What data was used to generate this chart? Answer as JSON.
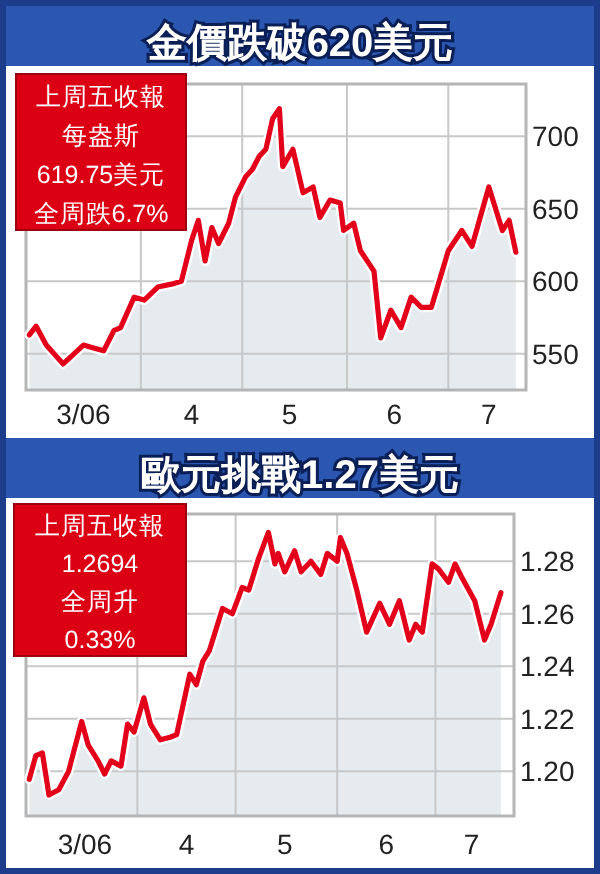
{
  "chart_data": [
    {
      "type": "area",
      "title": "金價跌破620美元",
      "annotations": [
        "上周五收報",
        "每盎斯",
        "619.75美元",
        "全周跌6.7%"
      ],
      "grid": true,
      "xlim": [
        "2006-02-26",
        "2006-07-24"
      ],
      "xticks": [
        {
          "value": "2006-03-15",
          "label": "3/06"
        },
        {
          "value": "2006-04-16",
          "label": "4"
        },
        {
          "value": "2006-05-15",
          "label": "5"
        },
        {
          "value": "2006-06-15",
          "label": "6"
        },
        {
          "value": "2006-07-13",
          "label": "7"
        },
        {
          "value": "2006-04-01",
          "label": null
        },
        {
          "value": "2006-05-01",
          "label": null
        },
        {
          "value": "2006-06-01",
          "label": null
        },
        {
          "value": "2006-07-01",
          "label": null
        }
      ],
      "ylim": [
        525,
        736
      ],
      "yticks": [
        550,
        600,
        650,
        700
      ],
      "series": [
        {
          "color": "#e2001a",
          "x": [
            "2006-02-27",
            "2006-03-01",
            "2006-03-04",
            "2006-03-09",
            "2006-03-15",
            "2006-03-18",
            "2006-03-21",
            "2006-03-24",
            "2006-03-26",
            "2006-03-30",
            "2006-04-02",
            "2006-04-06",
            "2006-04-10",
            "2006-04-13",
            "2006-04-16",
            "2006-04-18",
            "2006-04-20",
            "2006-04-22",
            "2006-04-24",
            "2006-04-27",
            "2006-04-29",
            "2006-05-02",
            "2006-05-04",
            "2006-05-06",
            "2006-05-08",
            "2006-05-10",
            "2006-05-12",
            "2006-05-13",
            "2006-05-16",
            "2006-05-19",
            "2006-05-22",
            "2006-05-24",
            "2006-05-27",
            "2006-05-30",
            "2006-05-31",
            "2006-06-03",
            "2006-06-05",
            "2006-06-09",
            "2006-06-11",
            "2006-06-14",
            "2006-06-17",
            "2006-06-20",
            "2006-06-23",
            "2006-06-26",
            "2006-07-01",
            "2006-07-05",
            "2006-07-08",
            "2006-07-13",
            "2006-07-17",
            "2006-07-19",
            "2006-07-21"
          ],
          "values": [
            563,
            569,
            556,
            543,
            556,
            554,
            552,
            566,
            568,
            589,
            587,
            596,
            598,
            600,
            628,
            642,
            614,
            637,
            626,
            640,
            658,
            672,
            677,
            686,
            691,
            712,
            719,
            679,
            691,
            661,
            665,
            644,
            656,
            654,
            635,
            640,
            621,
            607,
            561,
            580,
            568,
            589,
            582,
            582,
            621,
            635,
            624,
            665,
            635,
            642,
            620
          ]
        }
      ]
    },
    {
      "type": "area",
      "title": "歐元挑戰1.27美元",
      "annotations": [
        "上周五收報",
        "1.2694",
        "全周升",
        "0.33%"
      ],
      "grid": true,
      "xlim": [
        "2006-02-26",
        "2006-07-25"
      ],
      "xticks": [
        {
          "value": "2006-03-16",
          "label": "3/06"
        },
        {
          "value": "2006-04-16",
          "label": "4"
        },
        {
          "value": "2006-05-16",
          "label": "5"
        },
        {
          "value": "2006-06-16",
          "label": "6"
        },
        {
          "value": "2006-07-12",
          "label": "7"
        },
        {
          "value": "2006-04-01",
          "label": null
        },
        {
          "value": "2006-05-01",
          "label": null
        },
        {
          "value": "2006-06-01",
          "label": null
        },
        {
          "value": "2006-07-01",
          "label": null
        }
      ],
      "ylim": [
        1.183,
        1.298
      ],
      "yticks": [
        {
          "value": 1.2,
          "label": "1.20"
        },
        1.22,
        1.24,
        1.26,
        1.28
      ],
      "series": [
        {
          "color": "#e2001a",
          "x": [
            "2006-02-27",
            "2006-03-01",
            "2006-03-03",
            "2006-03-05",
            "2006-03-08",
            "2006-03-11",
            "2006-03-15",
            "2006-03-17",
            "2006-03-20",
            "2006-03-22",
            "2006-03-24",
            "2006-03-27",
            "2006-03-29",
            "2006-03-31",
            "2006-04-03",
            "2006-04-05",
            "2006-04-08",
            "2006-04-11",
            "2006-04-13",
            "2006-04-17",
            "2006-04-19",
            "2006-04-21",
            "2006-04-23",
            "2006-04-27",
            "2006-04-30",
            "2006-05-03",
            "2006-05-05",
            "2006-05-08",
            "2006-05-11",
            "2006-05-13",
            "2006-05-14",
            "2006-05-16",
            "2006-05-19",
            "2006-05-21",
            "2006-05-24",
            "2006-05-27",
            "2006-05-29",
            "2006-06-01",
            "2006-06-02",
            "2006-06-04",
            "2006-06-07",
            "2006-06-10",
            "2006-06-14",
            "2006-06-17",
            "2006-06-20",
            "2006-06-23",
            "2006-06-25",
            "2006-06-27",
            "2006-06-30",
            "2006-07-02",
            "2006-07-05",
            "2006-07-07",
            "2006-07-09",
            "2006-07-13",
            "2006-07-16",
            "2006-07-18",
            "2006-07-21"
          ],
          "values": [
            1.197,
            1.206,
            1.207,
            1.191,
            1.193,
            1.2,
            1.219,
            1.21,
            1.204,
            1.199,
            1.204,
            1.202,
            1.218,
            1.215,
            1.228,
            1.218,
            1.212,
            1.213,
            1.214,
            1.237,
            1.233,
            1.242,
            1.246,
            1.262,
            1.26,
            1.27,
            1.269,
            1.281,
            1.291,
            1.279,
            1.283,
            1.276,
            1.284,
            1.276,
            1.28,
            1.275,
            1.283,
            1.28,
            1.289,
            1.283,
            1.269,
            1.253,
            1.264,
            1.256,
            1.265,
            1.25,
            1.256,
            1.253,
            1.279,
            1.277,
            1.272,
            1.279,
            1.274,
            1.265,
            1.25,
            1.256,
            1.268
          ]
        }
      ]
    }
  ]
}
